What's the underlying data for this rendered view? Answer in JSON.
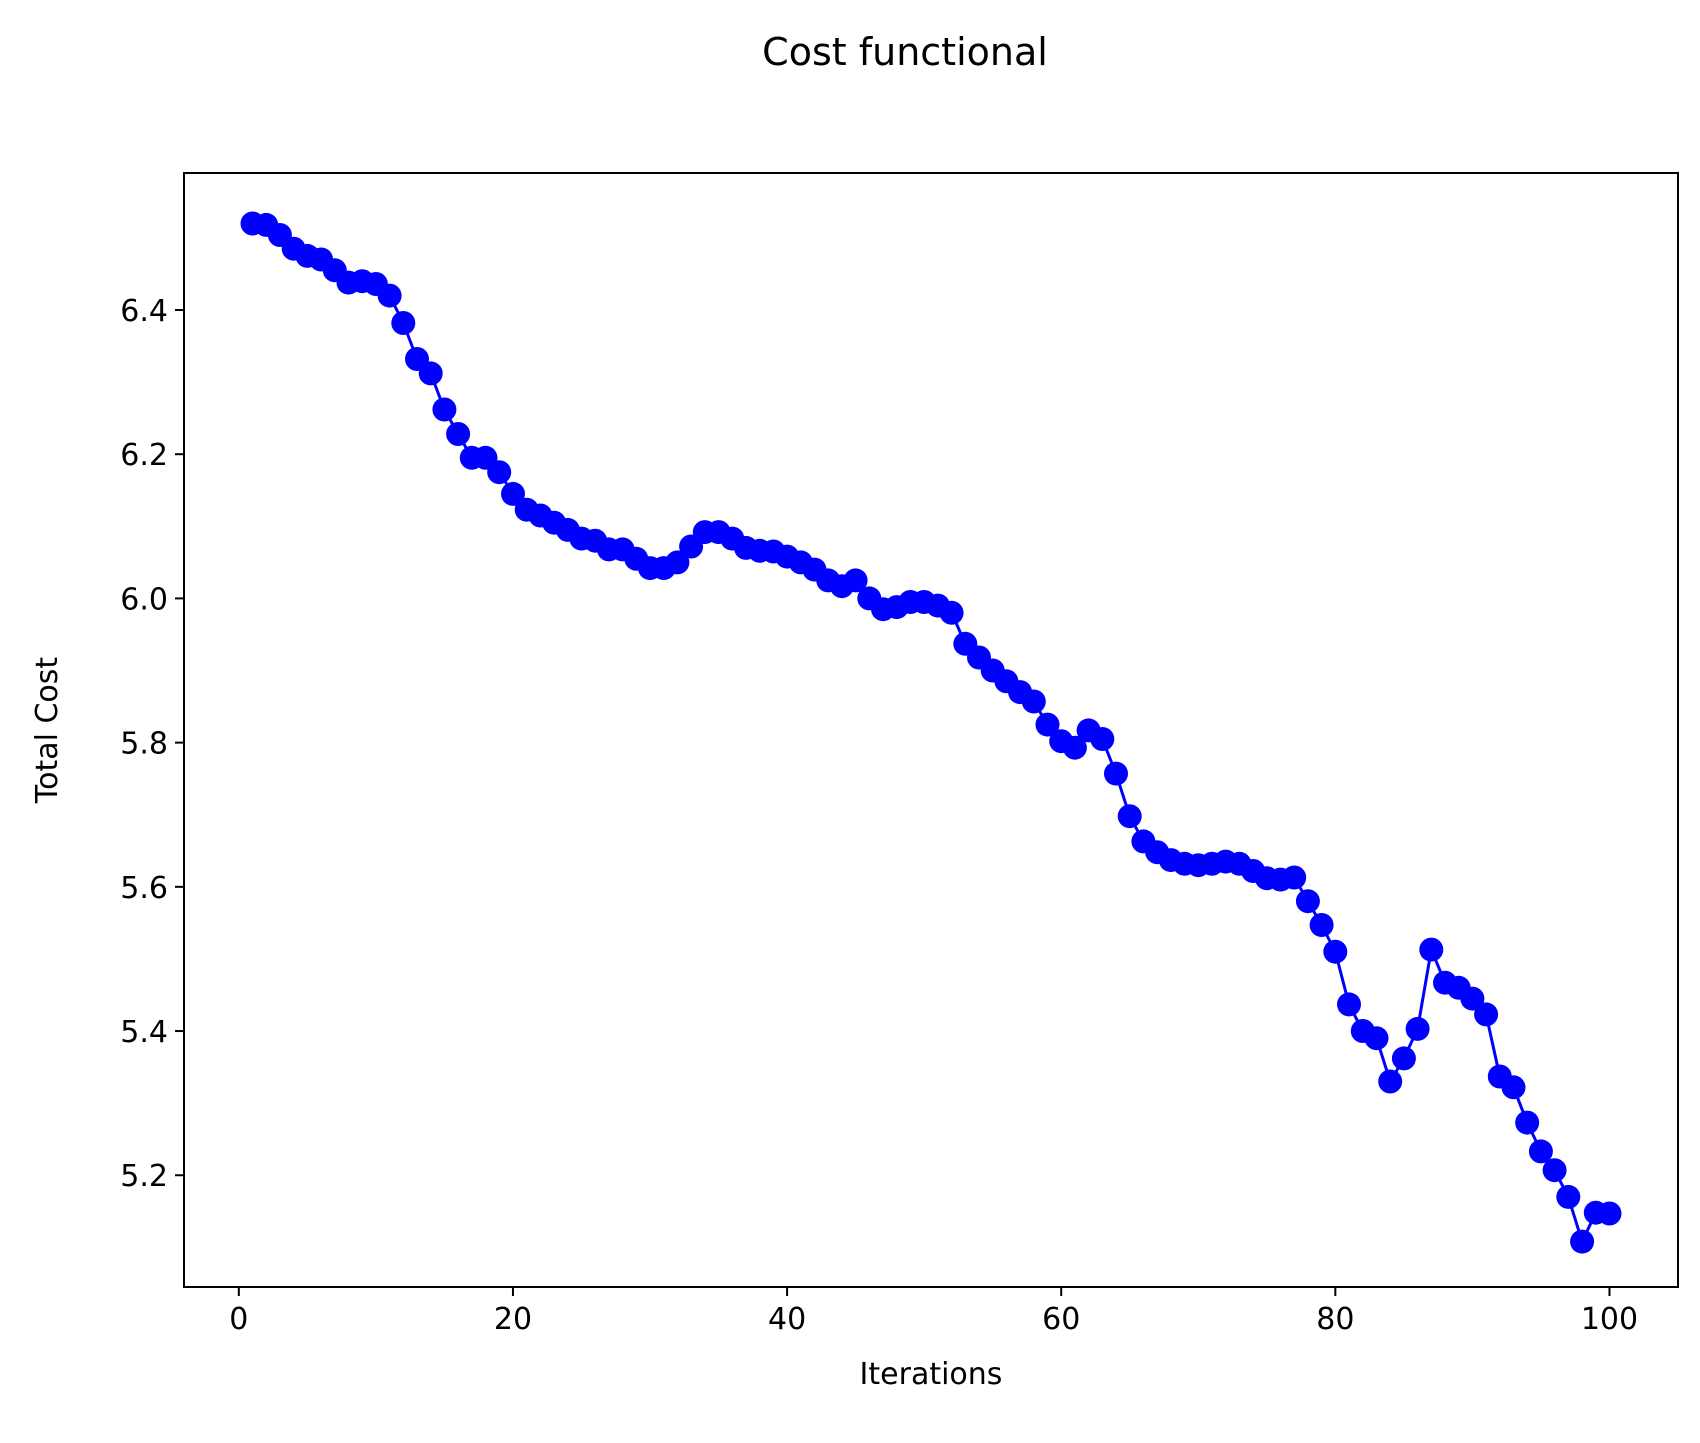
{
  "chart_data": {
    "type": "line",
    "title": "Cost functional",
    "xlabel": "Iterations",
    "ylabel": "Total Cost",
    "xlim": [
      -4,
      105
    ],
    "ylim": [
      5.045,
      6.59
    ],
    "xticks": [
      0,
      20,
      40,
      60,
      80,
      100
    ],
    "xtick_labels": [
      "0",
      "20",
      "40",
      "60",
      "80",
      "100"
    ],
    "yticks": [
      5.2,
      5.4,
      5.6,
      5.8,
      6.0,
      6.2,
      6.4
    ],
    "ytick_labels": [
      "5.2",
      "5.4",
      "5.6",
      "5.8",
      "6.0",
      "6.2",
      "6.4"
    ],
    "grid": false,
    "legend": "none",
    "line_color": "#0000ff",
    "marker": "circle",
    "x": [
      1,
      2,
      3,
      4,
      5,
      6,
      7,
      8,
      9,
      10,
      11,
      12,
      13,
      14,
      15,
      16,
      17,
      18,
      19,
      20,
      21,
      22,
      23,
      24,
      25,
      26,
      27,
      28,
      29,
      30,
      31,
      32,
      33,
      34,
      35,
      36,
      37,
      38,
      39,
      40,
      41,
      42,
      43,
      44,
      45,
      46,
      47,
      48,
      49,
      50,
      51,
      52,
      53,
      54,
      55,
      56,
      57,
      58,
      59,
      60,
      61,
      62,
      63,
      64,
      65,
      66,
      67,
      68,
      69,
      70,
      71,
      72,
      73,
      74,
      75,
      76,
      77,
      78,
      79,
      80,
      81,
      82,
      83,
      84,
      85,
      86,
      87,
      88,
      89,
      90,
      91,
      92,
      93,
      94,
      95,
      96,
      97,
      98,
      99,
      100
    ],
    "y": [
      6.52,
      6.518,
      6.504,
      6.485,
      6.475,
      6.47,
      6.455,
      6.438,
      6.44,
      6.436,
      6.42,
      6.382,
      6.332,
      6.312,
      6.262,
      6.228,
      6.195,
      6.195,
      6.175,
      6.145,
      6.123,
      6.115,
      6.105,
      6.095,
      6.083,
      6.08,
      6.068,
      6.068,
      6.055,
      6.042,
      6.042,
      6.05,
      6.072,
      6.092,
      6.092,
      6.083,
      6.07,
      6.066,
      6.065,
      6.058,
      6.05,
      6.04,
      6.025,
      6.017,
      6.025,
      6.0,
      5.985,
      5.988,
      5.995,
      5.995,
      5.99,
      5.98,
      5.937,
      5.918,
      5.9,
      5.885,
      5.87,
      5.857,
      5.825,
      5.802,
      5.793,
      5.817,
      5.805,
      5.757,
      5.698,
      5.663,
      5.648,
      5.637,
      5.632,
      5.63,
      5.632,
      5.635,
      5.632,
      5.622,
      5.612,
      5.61,
      5.613,
      5.58,
      5.547,
      5.51,
      5.437,
      5.4,
      5.39,
      5.33,
      5.362,
      5.403,
      5.513,
      5.467,
      5.46,
      5.445,
      5.423,
      5.337,
      5.322,
      5.273,
      5.233,
      5.207,
      5.17,
      5.108,
      5.148,
      5.147
    ]
  }
}
